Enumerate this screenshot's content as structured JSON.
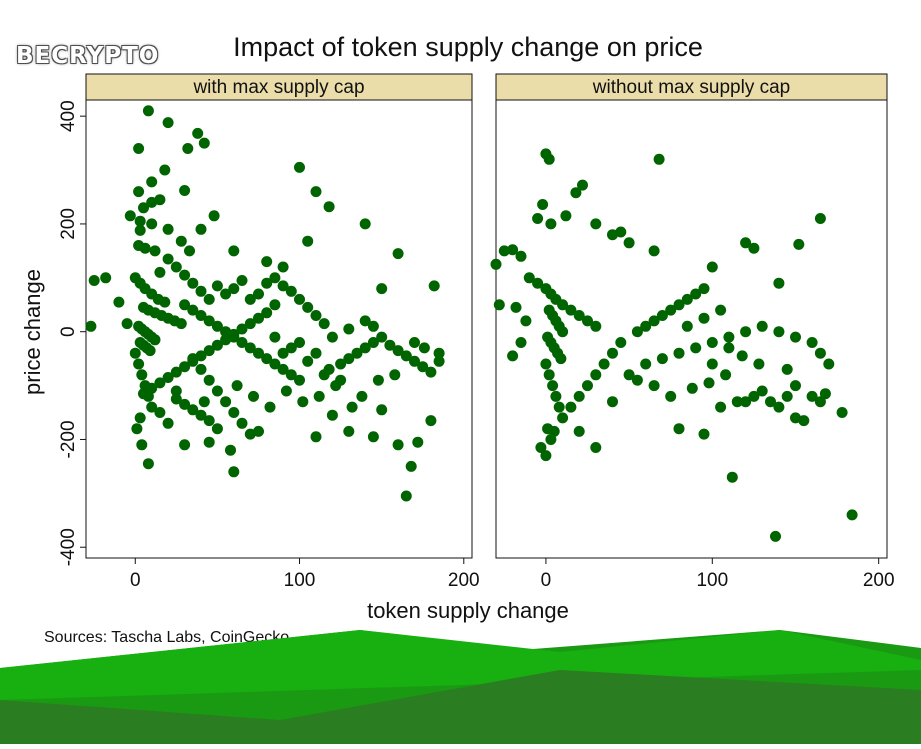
{
  "chart_data": {
    "type": "scatter",
    "title": "Impact of token supply change on price",
    "xlabel": "token supply change",
    "ylabel": "price change",
    "source": "Sources: Tascha Labs, CoinGecko",
    "xlim": [
      -30,
      205
    ],
    "ylim": [
      -420,
      430
    ],
    "xticks": [
      0,
      100,
      200
    ],
    "yticks": [
      -400,
      -200,
      0,
      200,
      400
    ],
    "grid": false,
    "marker_color": "#006400",
    "panel_header_color": "#EBDDAA",
    "panels": [
      {
        "name": "with max supply cap",
        "points": [
          [
            8,
            410
          ],
          [
            20,
            388
          ],
          [
            38,
            368
          ],
          [
            42,
            350
          ],
          [
            2,
            340
          ],
          [
            32,
            340
          ],
          [
            100,
            305
          ],
          [
            18,
            300
          ],
          [
            10,
            278
          ],
          [
            30,
            262
          ],
          [
            110,
            260
          ],
          [
            2,
            260
          ],
          [
            15,
            245
          ],
          [
            10,
            240
          ],
          [
            5,
            230
          ],
          [
            118,
            232
          ],
          [
            48,
            215
          ],
          [
            -3,
            215
          ],
          [
            3,
            205
          ],
          [
            10,
            200
          ],
          [
            140,
            200
          ],
          [
            20,
            190
          ],
          [
            40,
            190
          ],
          [
            3,
            188
          ],
          [
            28,
            168
          ],
          [
            105,
            168
          ],
          [
            2,
            160
          ],
          [
            6,
            155
          ],
          [
            12,
            150
          ],
          [
            33,
            150
          ],
          [
            60,
            150
          ],
          [
            80,
            130
          ],
          [
            90,
            120
          ],
          [
            160,
            145
          ],
          [
            -25,
            95
          ],
          [
            -18,
            100
          ],
          [
            -10,
            55
          ],
          [
            0,
            100
          ],
          [
            3,
            90
          ],
          [
            6,
            80
          ],
          [
            10,
            70
          ],
          [
            14,
            60
          ],
          [
            18,
            55
          ],
          [
            5,
            45
          ],
          [
            8,
            40
          ],
          [
            12,
            35
          ],
          [
            16,
            30
          ],
          [
            20,
            25
          ],
          [
            24,
            20
          ],
          [
            28,
            15
          ],
          [
            2,
            10
          ],
          [
            4,
            5
          ],
          [
            6,
            0
          ],
          [
            8,
            -5
          ],
          [
            10,
            -10
          ],
          [
            12,
            -15
          ],
          [
            3,
            -20
          ],
          [
            5,
            -25
          ],
          [
            7,
            -30
          ],
          [
            9,
            -35
          ],
          [
            -27,
            10
          ],
          [
            -5,
            15
          ],
          [
            0,
            -40
          ],
          [
            2,
            -60
          ],
          [
            4,
            -80
          ],
          [
            6,
            -100
          ],
          [
            8,
            -120
          ],
          [
            10,
            -140
          ],
          [
            3,
            -160
          ],
          [
            1,
            -180
          ],
          [
            4,
            -210
          ],
          [
            8,
            -245
          ],
          [
            30,
            50
          ],
          [
            35,
            40
          ],
          [
            40,
            30
          ],
          [
            45,
            20
          ],
          [
            50,
            10
          ],
          [
            55,
            0
          ],
          [
            60,
            -10
          ],
          [
            65,
            -20
          ],
          [
            70,
            -30
          ],
          [
            75,
            -40
          ],
          [
            80,
            -50
          ],
          [
            85,
            -60
          ],
          [
            90,
            -70
          ],
          [
            95,
            -80
          ],
          [
            100,
            -90
          ],
          [
            35,
            -50
          ],
          [
            40,
            -70
          ],
          [
            45,
            -90
          ],
          [
            50,
            -110
          ],
          [
            55,
            -130
          ],
          [
            60,
            -150
          ],
          [
            65,
            -170
          ],
          [
            70,
            -190
          ],
          [
            30,
            -210
          ],
          [
            45,
            -205
          ],
          [
            60,
            -260
          ],
          [
            58,
            -220
          ],
          [
            75,
            -185
          ],
          [
            110,
            -195
          ],
          [
            120,
            -155
          ],
          [
            130,
            -185
          ],
          [
            145,
            -195
          ],
          [
            150,
            -145
          ],
          [
            160,
            -210
          ],
          [
            172,
            -205
          ],
          [
            168,
            -250
          ],
          [
            165,
            -305
          ],
          [
            180,
            -165
          ],
          [
            118,
            -70
          ],
          [
            125,
            -60
          ],
          [
            130,
            -50
          ],
          [
            135,
            -40
          ],
          [
            140,
            -30
          ],
          [
            145,
            -20
          ],
          [
            150,
            -10
          ],
          [
            155,
            -25
          ],
          [
            160,
            -35
          ],
          [
            165,
            -45
          ],
          [
            170,
            -55
          ],
          [
            175,
            -65
          ],
          [
            180,
            -75
          ],
          [
            185,
            -40
          ],
          [
            185,
            -55
          ],
          [
            176,
            -30
          ],
          [
            170,
            -20
          ],
          [
            150,
            80
          ],
          [
            182,
            85
          ],
          [
            140,
            20
          ],
          [
            145,
            10
          ],
          [
            130,
            5
          ],
          [
            120,
            -10
          ],
          [
            115,
            15
          ],
          [
            110,
            30
          ],
          [
            105,
            45
          ],
          [
            100,
            60
          ],
          [
            95,
            75
          ],
          [
            90,
            85
          ],
          [
            85,
            50
          ],
          [
            80,
            35
          ],
          [
            75,
            25
          ],
          [
            70,
            15
          ],
          [
            65,
            5
          ],
          [
            60,
            -5
          ],
          [
            55,
            -15
          ],
          [
            50,
            -25
          ],
          [
            45,
            -35
          ],
          [
            40,
            -45
          ],
          [
            35,
            -55
          ],
          [
            30,
            -65
          ],
          [
            25,
            -75
          ],
          [
            20,
            -85
          ],
          [
            15,
            -95
          ],
          [
            10,
            -105
          ],
          [
            5,
            -115
          ],
          [
            25,
            -125
          ],
          [
            30,
            -135
          ],
          [
            35,
            -145
          ],
          [
            40,
            -155
          ],
          [
            45,
            -165
          ],
          [
            50,
            -180
          ],
          [
            20,
            -170
          ],
          [
            15,
            -150
          ],
          [
            25,
            -110
          ],
          [
            42,
            -130
          ],
          [
            62,
            -100
          ],
          [
            72,
            -120
          ],
          [
            82,
            -140
          ],
          [
            92,
            -110
          ],
          [
            102,
            -130
          ],
          [
            112,
            -120
          ],
          [
            122,
            -100
          ],
          [
            132,
            -140
          ],
          [
            138,
            -120
          ],
          [
            148,
            -90
          ],
          [
            158,
            -80
          ],
          [
            70,
            60
          ],
          [
            75,
            70
          ],
          [
            80,
            90
          ],
          [
            85,
            100
          ],
          [
            60,
            80
          ],
          [
            65,
            95
          ],
          [
            55,
            70
          ],
          [
            50,
            85
          ],
          [
            45,
            60
          ],
          [
            40,
            75
          ],
          [
            35,
            90
          ],
          [
            30,
            105
          ],
          [
            25,
            120
          ],
          [
            20,
            135
          ],
          [
            15,
            110
          ],
          [
            100,
            -20
          ],
          [
            95,
            -30
          ],
          [
            90,
            -40
          ],
          [
            85,
            -10
          ],
          [
            110,
            -40
          ],
          [
            105,
            -55
          ],
          [
            115,
            -80
          ],
          [
            125,
            -90
          ]
        ]
      },
      {
        "name": "without max supply cap",
        "points": [
          [
            0,
            330
          ],
          [
            2,
            320
          ],
          [
            68,
            320
          ],
          [
            22,
            272
          ],
          [
            18,
            258
          ],
          [
            -2,
            236
          ],
          [
            12,
            215
          ],
          [
            30,
            200
          ],
          [
            -5,
            210
          ],
          [
            3,
            200
          ],
          [
            45,
            185
          ],
          [
            40,
            180
          ],
          [
            50,
            165
          ],
          [
            65,
            150
          ],
          [
            120,
            165
          ],
          [
            125,
            155
          ],
          [
            100,
            120
          ],
          [
            165,
            210
          ],
          [
            152,
            162
          ],
          [
            -25,
            150
          ],
          [
            -20,
            152
          ],
          [
            -15,
            140
          ],
          [
            -30,
            125
          ],
          [
            -10,
            100
          ],
          [
            -5,
            90
          ],
          [
            0,
            80
          ],
          [
            3,
            70
          ],
          [
            6,
            60
          ],
          [
            10,
            50
          ],
          [
            15,
            40
          ],
          [
            20,
            30
          ],
          [
            25,
            20
          ],
          [
            30,
            10
          ],
          [
            2,
            40
          ],
          [
            4,
            30
          ],
          [
            6,
            20
          ],
          [
            8,
            10
          ],
          [
            10,
            0
          ],
          [
            1,
            -10
          ],
          [
            3,
            -20
          ],
          [
            5,
            -30
          ],
          [
            7,
            -40
          ],
          [
            9,
            -50
          ],
          [
            -28,
            50
          ],
          [
            -18,
            45
          ],
          [
            -12,
            20
          ],
          [
            -15,
            -20
          ],
          [
            -20,
            -45
          ],
          [
            0,
            -60
          ],
          [
            2,
            -80
          ],
          [
            4,
            -100
          ],
          [
            6,
            -120
          ],
          [
            8,
            -140
          ],
          [
            10,
            -160
          ],
          [
            1,
            -180
          ],
          [
            3,
            -200
          ],
          [
            -3,
            -215
          ],
          [
            0,
            -230
          ],
          [
            5,
            -185
          ],
          [
            20,
            -185
          ],
          [
            30,
            -215
          ],
          [
            40,
            -130
          ],
          [
            50,
            -80
          ],
          [
            60,
            -60
          ],
          [
            70,
            -50
          ],
          [
            80,
            -40
          ],
          [
            90,
            -30
          ],
          [
            100,
            -20
          ],
          [
            110,
            -10
          ],
          [
            120,
            0
          ],
          [
            130,
            10
          ],
          [
            140,
            0
          ],
          [
            150,
            -10
          ],
          [
            160,
            -20
          ],
          [
            165,
            -40
          ],
          [
            170,
            -60
          ],
          [
            55,
            0
          ],
          [
            60,
            10
          ],
          [
            65,
            20
          ],
          [
            70,
            30
          ],
          [
            75,
            40
          ],
          [
            80,
            50
          ],
          [
            85,
            60
          ],
          [
            90,
            70
          ],
          [
            95,
            80
          ],
          [
            45,
            -20
          ],
          [
            40,
            -40
          ],
          [
            35,
            -60
          ],
          [
            30,
            -80
          ],
          [
            25,
            -100
          ],
          [
            20,
            -120
          ],
          [
            15,
            -140
          ],
          [
            55,
            -90
          ],
          [
            65,
            -100
          ],
          [
            75,
            -120
          ],
          [
            80,
            -180
          ],
          [
            95,
            -190
          ],
          [
            105,
            -140
          ],
          [
            115,
            -130
          ],
          [
            120,
            -130
          ],
          [
            125,
            -120
          ],
          [
            130,
            -110
          ],
          [
            135,
            -130
          ],
          [
            140,
            -140
          ],
          [
            145,
            -120
          ],
          [
            150,
            -160
          ],
          [
            155,
            -165
          ],
          [
            160,
            -120
          ],
          [
            168,
            -115
          ],
          [
            178,
            -150
          ],
          [
            184,
            -340
          ],
          [
            138,
            -380
          ],
          [
            112,
            -270
          ],
          [
            140,
            90
          ],
          [
            118,
            -45
          ],
          [
            128,
            -60
          ],
          [
            108,
            -80
          ],
          [
            98,
            -95
          ],
          [
            88,
            -105
          ],
          [
            150,
            -100
          ],
          [
            165,
            -130
          ],
          [
            145,
            -70
          ],
          [
            85,
            10
          ],
          [
            95,
            25
          ],
          [
            105,
            40
          ],
          [
            100,
            -60
          ],
          [
            110,
            -30
          ]
        ]
      }
    ]
  },
  "branding": {
    "logo_text": "BECRYPTO"
  }
}
